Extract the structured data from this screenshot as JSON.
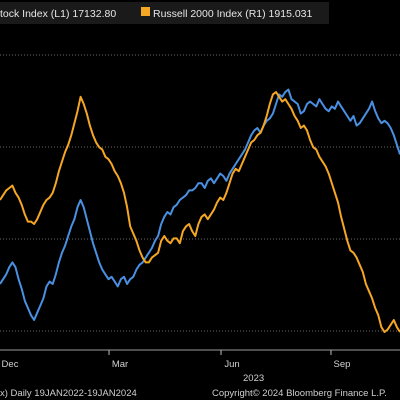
{
  "colors": {
    "background": "#000000",
    "grid": "#6b6b6b",
    "tick": "#bdbdbd",
    "series_blue": "#4a90e2",
    "series_orange": "#f5a623",
    "legend_bg": "#1a1a1a"
  },
  "legend": {
    "left_label": "tock Index  (L1) 17132.80",
    "right_label": "Russell 2000 Index  (R1) 1915.031"
  },
  "footer": {
    "left": "x)  Daily 19JAN2022-19JAN2024",
    "right": "Copyright© 2024 Bloomberg Finance L.P."
  },
  "chart_data": {
    "type": "line",
    "x_ticks": [
      "Dec",
      "Mar",
      "Jun",
      "Sep"
    ],
    "x_year_label": "2023",
    "grid": true,
    "legend_placement": "top",
    "series": [
      {
        "name": "tock Index (L1) 17132.80",
        "axis": "left",
        "color": "#4a90e2",
        "values": [
          0.2,
          0.22,
          0.24,
          0.27,
          0.29,
          0.27,
          0.22,
          0.18,
          0.13,
          0.1,
          0.07,
          0.05,
          0.08,
          0.11,
          0.14,
          0.19,
          0.21,
          0.2,
          0.24,
          0.29,
          0.33,
          0.36,
          0.4,
          0.44,
          0.47,
          0.52,
          0.55,
          0.52,
          0.47,
          0.42,
          0.37,
          0.33,
          0.29,
          0.26,
          0.24,
          0.22,
          0.23,
          0.21,
          0.19,
          0.22,
          0.23,
          0.2,
          0.22,
          0.23,
          0.26,
          0.28,
          0.29,
          0.31,
          0.33,
          0.35,
          0.38,
          0.4,
          0.45,
          0.48,
          0.5,
          0.49,
          0.52,
          0.53,
          0.55,
          0.56,
          0.57,
          0.59,
          0.59,
          0.6,
          0.62,
          0.62,
          0.6,
          0.63,
          0.64,
          0.62,
          0.64,
          0.66,
          0.65,
          0.63,
          0.66,
          0.68,
          0.7,
          0.72,
          0.74,
          0.76,
          0.79,
          0.82,
          0.84,
          0.85,
          0.83,
          0.86,
          0.88,
          0.89,
          0.91,
          0.95,
          0.99,
          0.98,
          1.0,
          1.01,
          0.97,
          0.96,
          0.95,
          0.91,
          0.92,
          0.95,
          0.96,
          0.95,
          0.94,
          0.97,
          0.95,
          0.93,
          0.92,
          0.94,
          0.93,
          0.96,
          0.94,
          0.92,
          0.9,
          0.88,
          0.9,
          0.86,
          0.87,
          0.89,
          0.91,
          0.93,
          0.96,
          0.92,
          0.89,
          0.87,
          0.88,
          0.87,
          0.85,
          0.82,
          0.78,
          0.74
        ]
      },
      {
        "name": "Russell 2000 Index (R1) 1915.031",
        "axis": "right",
        "color": "#f5a623",
        "values": [
          0.55,
          0.57,
          0.59,
          0.6,
          0.61,
          0.58,
          0.56,
          0.53,
          0.49,
          0.46,
          0.46,
          0.45,
          0.47,
          0.5,
          0.53,
          0.55,
          0.56,
          0.58,
          0.62,
          0.67,
          0.71,
          0.75,
          0.78,
          0.82,
          0.87,
          0.92,
          0.98,
          0.95,
          0.91,
          0.86,
          0.82,
          0.79,
          0.77,
          0.76,
          0.73,
          0.72,
          0.7,
          0.67,
          0.65,
          0.62,
          0.58,
          0.52,
          0.44,
          0.41,
          0.38,
          0.34,
          0.31,
          0.29,
          0.29,
          0.31,
          0.32,
          0.33,
          0.38,
          0.4,
          0.38,
          0.37,
          0.39,
          0.39,
          0.37,
          0.42,
          0.44,
          0.45,
          0.42,
          0.4,
          0.45,
          0.48,
          0.49,
          0.47,
          0.49,
          0.51,
          0.54,
          0.56,
          0.55,
          0.58,
          0.62,
          0.66,
          0.68,
          0.67,
          0.7,
          0.73,
          0.76,
          0.79,
          0.8,
          0.82,
          0.83,
          0.86,
          0.9,
          0.95,
          0.99,
          1.0,
          0.98,
          0.96,
          0.97,
          0.95,
          0.93,
          0.9,
          0.88,
          0.85,
          0.86,
          0.84,
          0.8,
          0.77,
          0.76,
          0.73,
          0.71,
          0.69,
          0.66,
          0.62,
          0.58,
          0.54,
          0.48,
          0.43,
          0.38,
          0.34,
          0.33,
          0.31,
          0.28,
          0.25,
          0.2,
          0.17,
          0.14,
          0.1,
          0.07,
          0.02,
          0.0,
          0.01,
          0.03,
          0.05,
          0.02,
          0.0
        ]
      }
    ]
  }
}
